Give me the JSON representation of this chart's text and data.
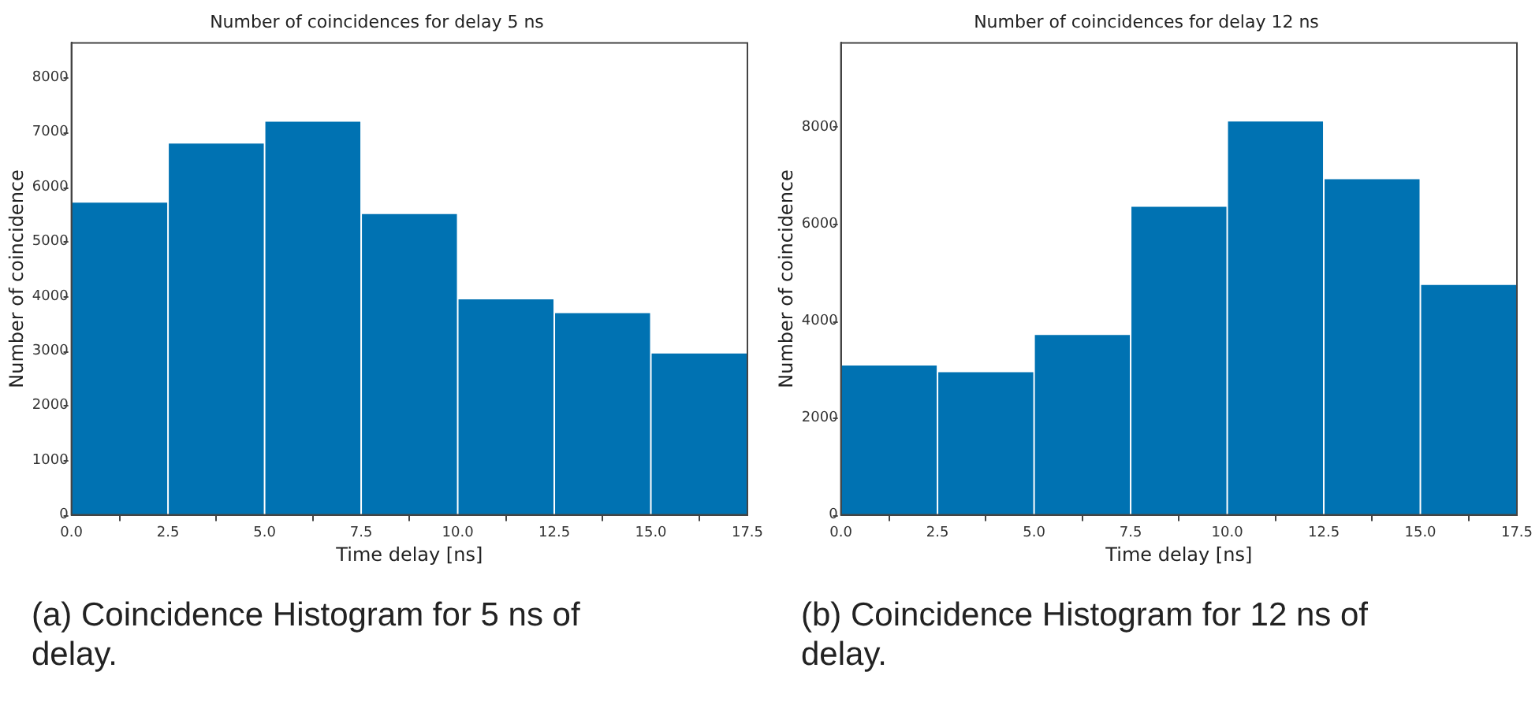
{
  "chart_data": [
    {
      "type": "histogram",
      "title": "Number of coincidences for delay 5 ns",
      "xlabel": "Time delay [ns]",
      "ylabel": "Number of coincidence",
      "bins": [
        0,
        2.5,
        5,
        7.5,
        10,
        12.5,
        15,
        17.5
      ],
      "values": [
        5710,
        6790,
        7190,
        5500,
        3940,
        3690,
        2950
      ],
      "color": "#0072b2",
      "xlim": [
        0,
        17.5
      ],
      "xticks": [
        {
          "value": 0,
          "label": "0.0"
        },
        2.5,
        {
          "value": 5,
          "label": "5.0"
        },
        7.5,
        {
          "value": 10,
          "label": "10.0"
        },
        12.5,
        {
          "value": 15,
          "label": "15.0"
        },
        17.5
      ],
      "ylim": [
        0,
        8630
      ],
      "yticks": [
        0,
        1000,
        2000,
        3000,
        4000,
        5000,
        6000,
        7000,
        8000
      ],
      "grid": false,
      "legend": false,
      "annotations": [
        "(a) Coincidence Histogram for 5 ns of delay."
      ]
    },
    {
      "type": "histogram",
      "title": "Number of coincidences for delay 12 ns",
      "xlabel": "Time delay [ns]",
      "ylabel": "Number of coincidence",
      "bins": [
        0,
        2.5,
        5,
        7.5,
        10,
        12.5,
        15,
        17.5
      ],
      "values": [
        3080,
        2940,
        3710,
        6350,
        8110,
        6920,
        4740
      ],
      "color": "#0072b2",
      "xlim": [
        0,
        17.5
      ],
      "xticks": [
        {
          "value": 0,
          "label": "0.0"
        },
        2.5,
        {
          "value": 5,
          "label": "5.0"
        },
        7.5,
        {
          "value": 10,
          "label": "10.0"
        },
        12.5,
        {
          "value": 15,
          "label": "15.0"
        },
        17.5
      ],
      "ylim": [
        0,
        9730
      ],
      "yticks": [
        0,
        2000,
        4000,
        6000,
        8000
      ],
      "grid": false,
      "legend": false,
      "annotations": [
        "(b) Coincidence Histogram for 12 ns of delay."
      ]
    }
  ]
}
